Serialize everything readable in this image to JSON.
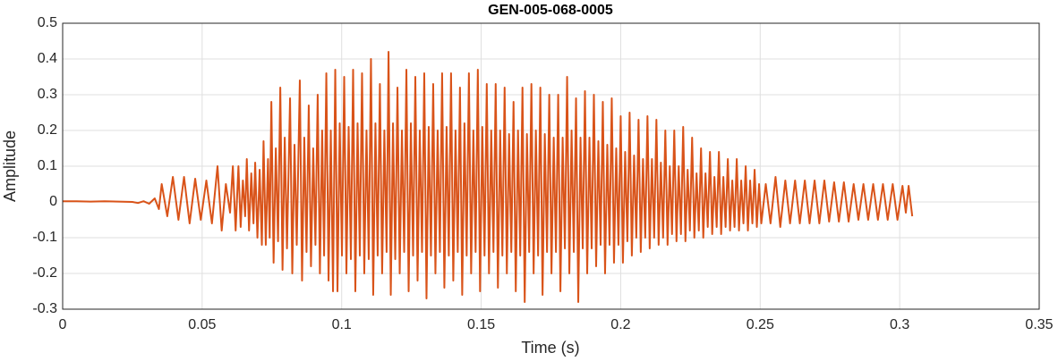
{
  "chart_data": {
    "type": "line",
    "title": "GEN-005-068-0005",
    "x_label": "Time (s)",
    "y_label": "Amplitude",
    "color": "#D95319",
    "grid": true,
    "xlim": [
      0,
      0.35
    ],
    "xticks": [
      0,
      0.05,
      0.1,
      0.15,
      0.2,
      0.25,
      0.3,
      0.35
    ],
    "ylim": [
      -0.3,
      0.5
    ],
    "yticks": [
      -0.3,
      -0.2,
      -0.1,
      0,
      0.1,
      0.2,
      0.3,
      0.4,
      0.5
    ],
    "x": [
      0,
      0.005,
      0.01,
      0.015,
      0.02,
      0.025,
      0.027,
      0.029,
      0.031,
      0.033,
      0.0345,
      0.0355,
      0.0375,
      0.0395,
      0.0415,
      0.0435,
      0.0455,
      0.0475,
      0.0495,
      0.0515,
      0.0535,
      0.0555,
      0.057,
      0.0585,
      0.06,
      0.061,
      0.062,
      0.063,
      0.0638,
      0.0646,
      0.0654,
      0.066,
      0.0668,
      0.0676,
      0.0684,
      0.069,
      0.0698,
      0.0706,
      0.0714,
      0.072,
      0.0728,
      0.0736,
      0.0742,
      0.0748,
      0.0756,
      0.0764,
      0.0772,
      0.078,
      0.0788,
      0.0796,
      0.0804,
      0.0815,
      0.0823,
      0.0831,
      0.0839,
      0.085,
      0.0858,
      0.0866,
      0.0874,
      0.0882,
      0.089,
      0.0898,
      0.0906,
      0.0914,
      0.0922,
      0.093,
      0.0937,
      0.0945,
      0.0953,
      0.0961,
      0.0969,
      0.0977,
      0.0985,
      0.0993,
      0.1001,
      0.1009,
      0.1017,
      0.1025,
      0.1033,
      0.1041,
      0.1049,
      0.1057,
      0.1065,
      0.1073,
      0.1081,
      0.1089,
      0.1097,
      0.1105,
      0.1113,
      0.1121,
      0.1129,
      0.1137,
      0.1145,
      0.1153,
      0.1161,
      0.1168,
      0.1176,
      0.1184,
      0.1192,
      0.12,
      0.1208,
      0.1216,
      0.1224,
      0.1232,
      0.124,
      0.1248,
      0.1256,
      0.1264,
      0.1272,
      0.128,
      0.1288,
      0.1296,
      0.1304,
      0.1312,
      0.132,
      0.1328,
      0.1336,
      0.1344,
      0.1352,
      0.136,
      0.1368,
      0.1376,
      0.1384,
      0.1392,
      0.14,
      0.1408,
      0.1416,
      0.1424,
      0.1432,
      0.144,
      0.1448,
      0.1456,
      0.1464,
      0.1472,
      0.148,
      0.1488,
      0.1496,
      0.1504,
      0.1512,
      0.152,
      0.1528,
      0.1536,
      0.1544,
      0.1552,
      0.156,
      0.1568,
      0.1576,
      0.1584,
      0.1592,
      0.16,
      0.1608,
      0.1616,
      0.1624,
      0.1632,
      0.164,
      0.1648,
      0.1656,
      0.1664,
      0.1672,
      0.168,
      0.1688,
      0.1696,
      0.1704,
      0.1712,
      0.172,
      0.1728,
      0.1736,
      0.1744,
      0.1752,
      0.176,
      0.1768,
      0.1776,
      0.1784,
      0.1792,
      0.18,
      0.1808,
      0.1816,
      0.1824,
      0.1832,
      0.184,
      0.1848,
      0.1856,
      0.1864,
      0.1872,
      0.188,
      0.1888,
      0.1896,
      0.1904,
      0.1912,
      0.192,
      0.1928,
      0.1936,
      0.1944,
      0.1952,
      0.196,
      0.1968,
      0.1976,
      0.1984,
      0.1992,
      0.2,
      0.2008,
      0.2016,
      0.2024,
      0.2032,
      0.204,
      0.2048,
      0.2056,
      0.2064,
      0.2072,
      0.208,
      0.2088,
      0.2096,
      0.2104,
      0.2112,
      0.212,
      0.2128,
      0.2136,
      0.2144,
      0.2152,
      0.216,
      0.2168,
      0.2176,
      0.2184,
      0.2192,
      0.22,
      0.2208,
      0.2216,
      0.2224,
      0.2232,
      0.224,
      0.2248,
      0.2256,
      0.2264,
      0.2272,
      0.228,
      0.2288,
      0.2296,
      0.2304,
      0.2312,
      0.232,
      0.2328,
      0.2336,
      0.2344,
      0.2352,
      0.236,
      0.2368,
      0.2376,
      0.2384,
      0.2392,
      0.24,
      0.2408,
      0.2416,
      0.2424,
      0.2432,
      0.244,
      0.2448,
      0.2456,
      0.2464,
      0.2472,
      0.248,
      0.2488,
      0.2496,
      0.2504,
      0.252,
      0.2537,
      0.2555,
      0.2572,
      0.259,
      0.2607,
      0.2625,
      0.2642,
      0.266,
      0.2677,
      0.2695,
      0.2712,
      0.273,
      0.2747,
      0.2765,
      0.2782,
      0.28,
      0.2817,
      0.2835,
      0.2852,
      0.287,
      0.2887,
      0.2905,
      0.2922,
      0.294,
      0.2957,
      0.2975,
      0.2992,
      0.301,
      0.3022,
      0.3032,
      0.3045
    ],
    "values": [
      0.002,
      0.002,
      0.001,
      0.002,
      0.001,
      0,
      -0.003,
      0.002,
      -0.005,
      0.01,
      -0.02,
      0.05,
      -0.04,
      0.07,
      -0.05,
      0.07,
      -0.06,
      0.065,
      -0.05,
      0.06,
      -0.06,
      0.1,
      -0.08,
      0.05,
      -0.03,
      0.1,
      -0.08,
      0.1,
      -0.07,
      0.06,
      -0.04,
      0.12,
      -0.08,
      0.08,
      -0.06,
      0.11,
      -0.1,
      0.09,
      -0.12,
      0.17,
      -0.12,
      0.12,
      -0.1,
      0.28,
      -0.17,
      0.15,
      -0.11,
      0.32,
      -0.19,
      0.18,
      -0.13,
      0.29,
      -0.2,
      0.16,
      -0.12,
      0.34,
      -0.22,
      0.18,
      -0.14,
      0.27,
      -0.18,
      0.15,
      -0.12,
      0.3,
      -0.2,
      0.2,
      -0.15,
      0.36,
      -0.22,
      0.2,
      -0.25,
      0.37,
      -0.25,
      0.22,
      -0.15,
      0.35,
      -0.2,
      0.21,
      -0.16,
      0.37,
      -0.25,
      0.22,
      -0.15,
      0.36,
      -0.2,
      0.2,
      -0.16,
      0.4,
      -0.26,
      0.22,
      -0.15,
      0.33,
      -0.2,
      0.2,
      -0.14,
      0.42,
      -0.26,
      0.22,
      -0.16,
      0.32,
      -0.2,
      0.2,
      -0.14,
      0.37,
      -0.25,
      0.22,
      -0.15,
      0.35,
      -0.22,
      0.2,
      -0.14,
      0.36,
      -0.27,
      0.21,
      -0.15,
      0.33,
      -0.2,
      0.2,
      -0.14,
      0.36,
      -0.24,
      0.21,
      -0.15,
      0.36,
      -0.22,
      0.2,
      -0.14,
      0.32,
      -0.26,
      0.22,
      -0.15,
      0.36,
      -0.2,
      0.2,
      -0.14,
      0.37,
      -0.25,
      0.21,
      -0.15,
      0.33,
      -0.2,
      0.2,
      -0.14,
      0.33,
      -0.24,
      0.2,
      -0.15,
      0.32,
      -0.2,
      0.19,
      -0.14,
      0.28,
      -0.25,
      0.2,
      -0.15,
      0.32,
      -0.28,
      0.19,
      -0.14,
      0.33,
      -0.2,
      0.2,
      -0.15,
      0.32,
      -0.26,
      0.19,
      -0.14,
      0.3,
      -0.2,
      0.18,
      -0.14,
      0.3,
      -0.25,
      0.18,
      -0.13,
      0.35,
      -0.2,
      0.2,
      -0.14,
      0.29,
      -0.28,
      0.18,
      -0.13,
      0.31,
      -0.2,
      0.18,
      -0.13,
      0.3,
      -0.18,
      0.17,
      -0.12,
      0.28,
      -0.2,
      0.16,
      -0.12,
      0.29,
      -0.17,
      0.15,
      -0.12,
      0.24,
      -0.17,
      0.14,
      -0.11,
      0.25,
      -0.15,
      0.13,
      -0.1,
      0.23,
      -0.14,
      0.12,
      -0.1,
      0.24,
      -0.13,
      0.12,
      -0.1,
      0.23,
      -0.12,
      0.11,
      -0.1,
      0.2,
      -0.12,
      0.1,
      -0.09,
      0.2,
      -0.11,
      0.1,
      -0.09,
      0.21,
      -0.11,
      0.09,
      -0.08,
      0.18,
      -0.1,
      0.08,
      -0.08,
      0.15,
      -0.1,
      0.08,
      -0.07,
      0.14,
      -0.09,
      0.07,
      -0.07,
      0.14,
      -0.09,
      0.07,
      -0.07,
      0.12,
      -0.08,
      0.06,
      -0.07,
      0.12,
      -0.08,
      0.06,
      -0.06,
      0.1,
      -0.08,
      0.06,
      -0.06,
      0.09,
      -0.07,
      0.05,
      -0.06,
      0.05,
      -0.06,
      0.07,
      -0.07,
      0.06,
      -0.06,
      0.06,
      -0.06,
      0.06,
      -0.06,
      0.06,
      -0.06,
      0.06,
      -0.055,
      0.055,
      -0.055,
      0.055,
      -0.055,
      0.05,
      -0.05,
      0.05,
      -0.05,
      0.05,
      -0.05,
      0.05,
      -0.05,
      0.05,
      -0.05,
      0.045,
      -0.03,
      0.045,
      -0.04
    ]
  }
}
